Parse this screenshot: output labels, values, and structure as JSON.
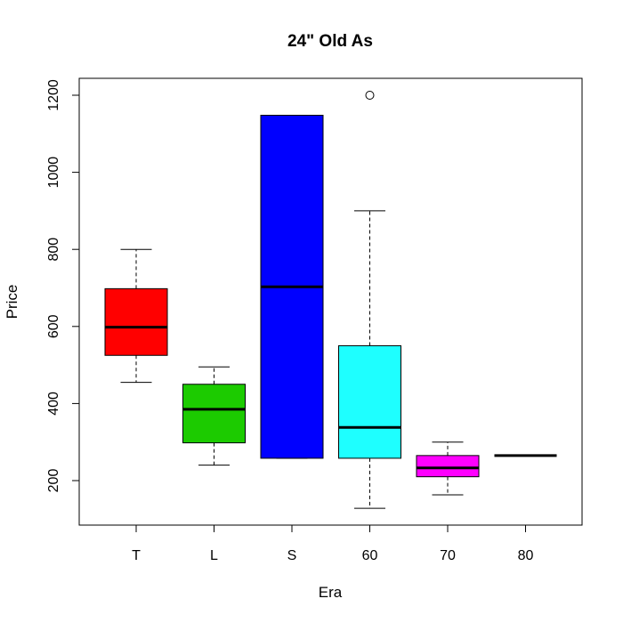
{
  "chart_data": {
    "type": "boxplot",
    "title": "24\" Old As",
    "xlabel": "Era",
    "ylabel": "Price",
    "ylim": [
      90,
      1240
    ],
    "y_ticks": [
      200,
      400,
      600,
      800,
      1000,
      1200
    ],
    "grid": false,
    "categories": [
      "T",
      "L",
      "S",
      "60",
      "70",
      "80"
    ],
    "boxes": [
      {
        "category": "T",
        "color": "#ff0000",
        "whisker_low": 455,
        "q1": 525,
        "median": 598,
        "q3": 698,
        "whisker_high": 800,
        "outliers": []
      },
      {
        "category": "L",
        "color": "#1ccb00",
        "whisker_low": 240,
        "q1": 298,
        "median": 385,
        "q3": 450,
        "whisker_high": 495,
        "outliers": []
      },
      {
        "category": "S",
        "color": "#0000ff",
        "whisker_low": 258,
        "q1": 258,
        "median": 703,
        "q3": 1148,
        "whisker_high": 1148,
        "outliers": []
      },
      {
        "category": "60",
        "color": "#1effff",
        "whisker_low": 128,
        "q1": 258,
        "median": 338,
        "q3": 550,
        "whisker_high": 900,
        "outliers": [
          1200
        ]
      },
      {
        "category": "70",
        "color": "#ff00ff",
        "whisker_low": 163,
        "q1": 210,
        "median": 233,
        "q3": 265,
        "whisker_high": 300,
        "outliers": []
      },
      {
        "category": "80",
        "color": "#ffff00",
        "whisker_low": 265,
        "q1": 265,
        "median": 265,
        "q3": 265,
        "whisker_high": 265,
        "outliers": []
      }
    ]
  }
}
